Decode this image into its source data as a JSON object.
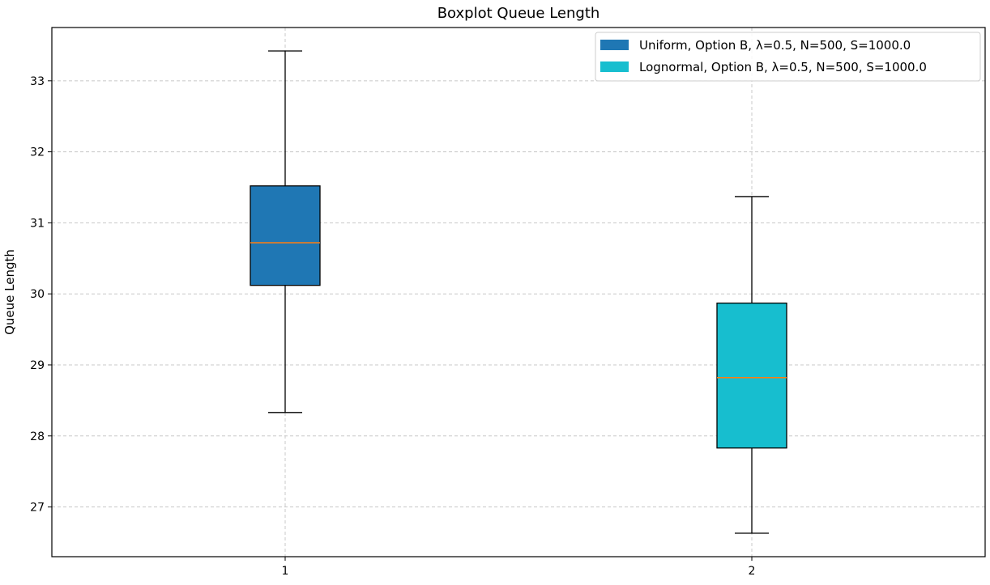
{
  "chart_data": {
    "type": "boxplot",
    "title": "Boxplot Queue Length",
    "xlabel": "",
    "ylabel": "Queue Length",
    "ylim": [
      26.3,
      33.75
    ],
    "yticks": [
      27,
      28,
      29,
      30,
      31,
      32,
      33
    ],
    "grid": true,
    "legend_position": "top-right",
    "categories": [
      "1",
      "2"
    ],
    "series": [
      {
        "name": "Uniform, Option B, λ=0.5, N=500, S=1000.0",
        "color": "#1f77b4",
        "whisker_low": 28.33,
        "q1": 30.12,
        "median": 30.72,
        "q3": 31.52,
        "whisker_high": 33.42
      },
      {
        "name": "Lognormal, Option B, λ=0.5, N=500, S=1000.0",
        "color": "#17becf",
        "whisker_low": 26.63,
        "q1": 27.83,
        "median": 28.82,
        "q3": 29.87,
        "whisker_high": 31.37
      }
    ],
    "median_color": "#ff7f0e"
  }
}
